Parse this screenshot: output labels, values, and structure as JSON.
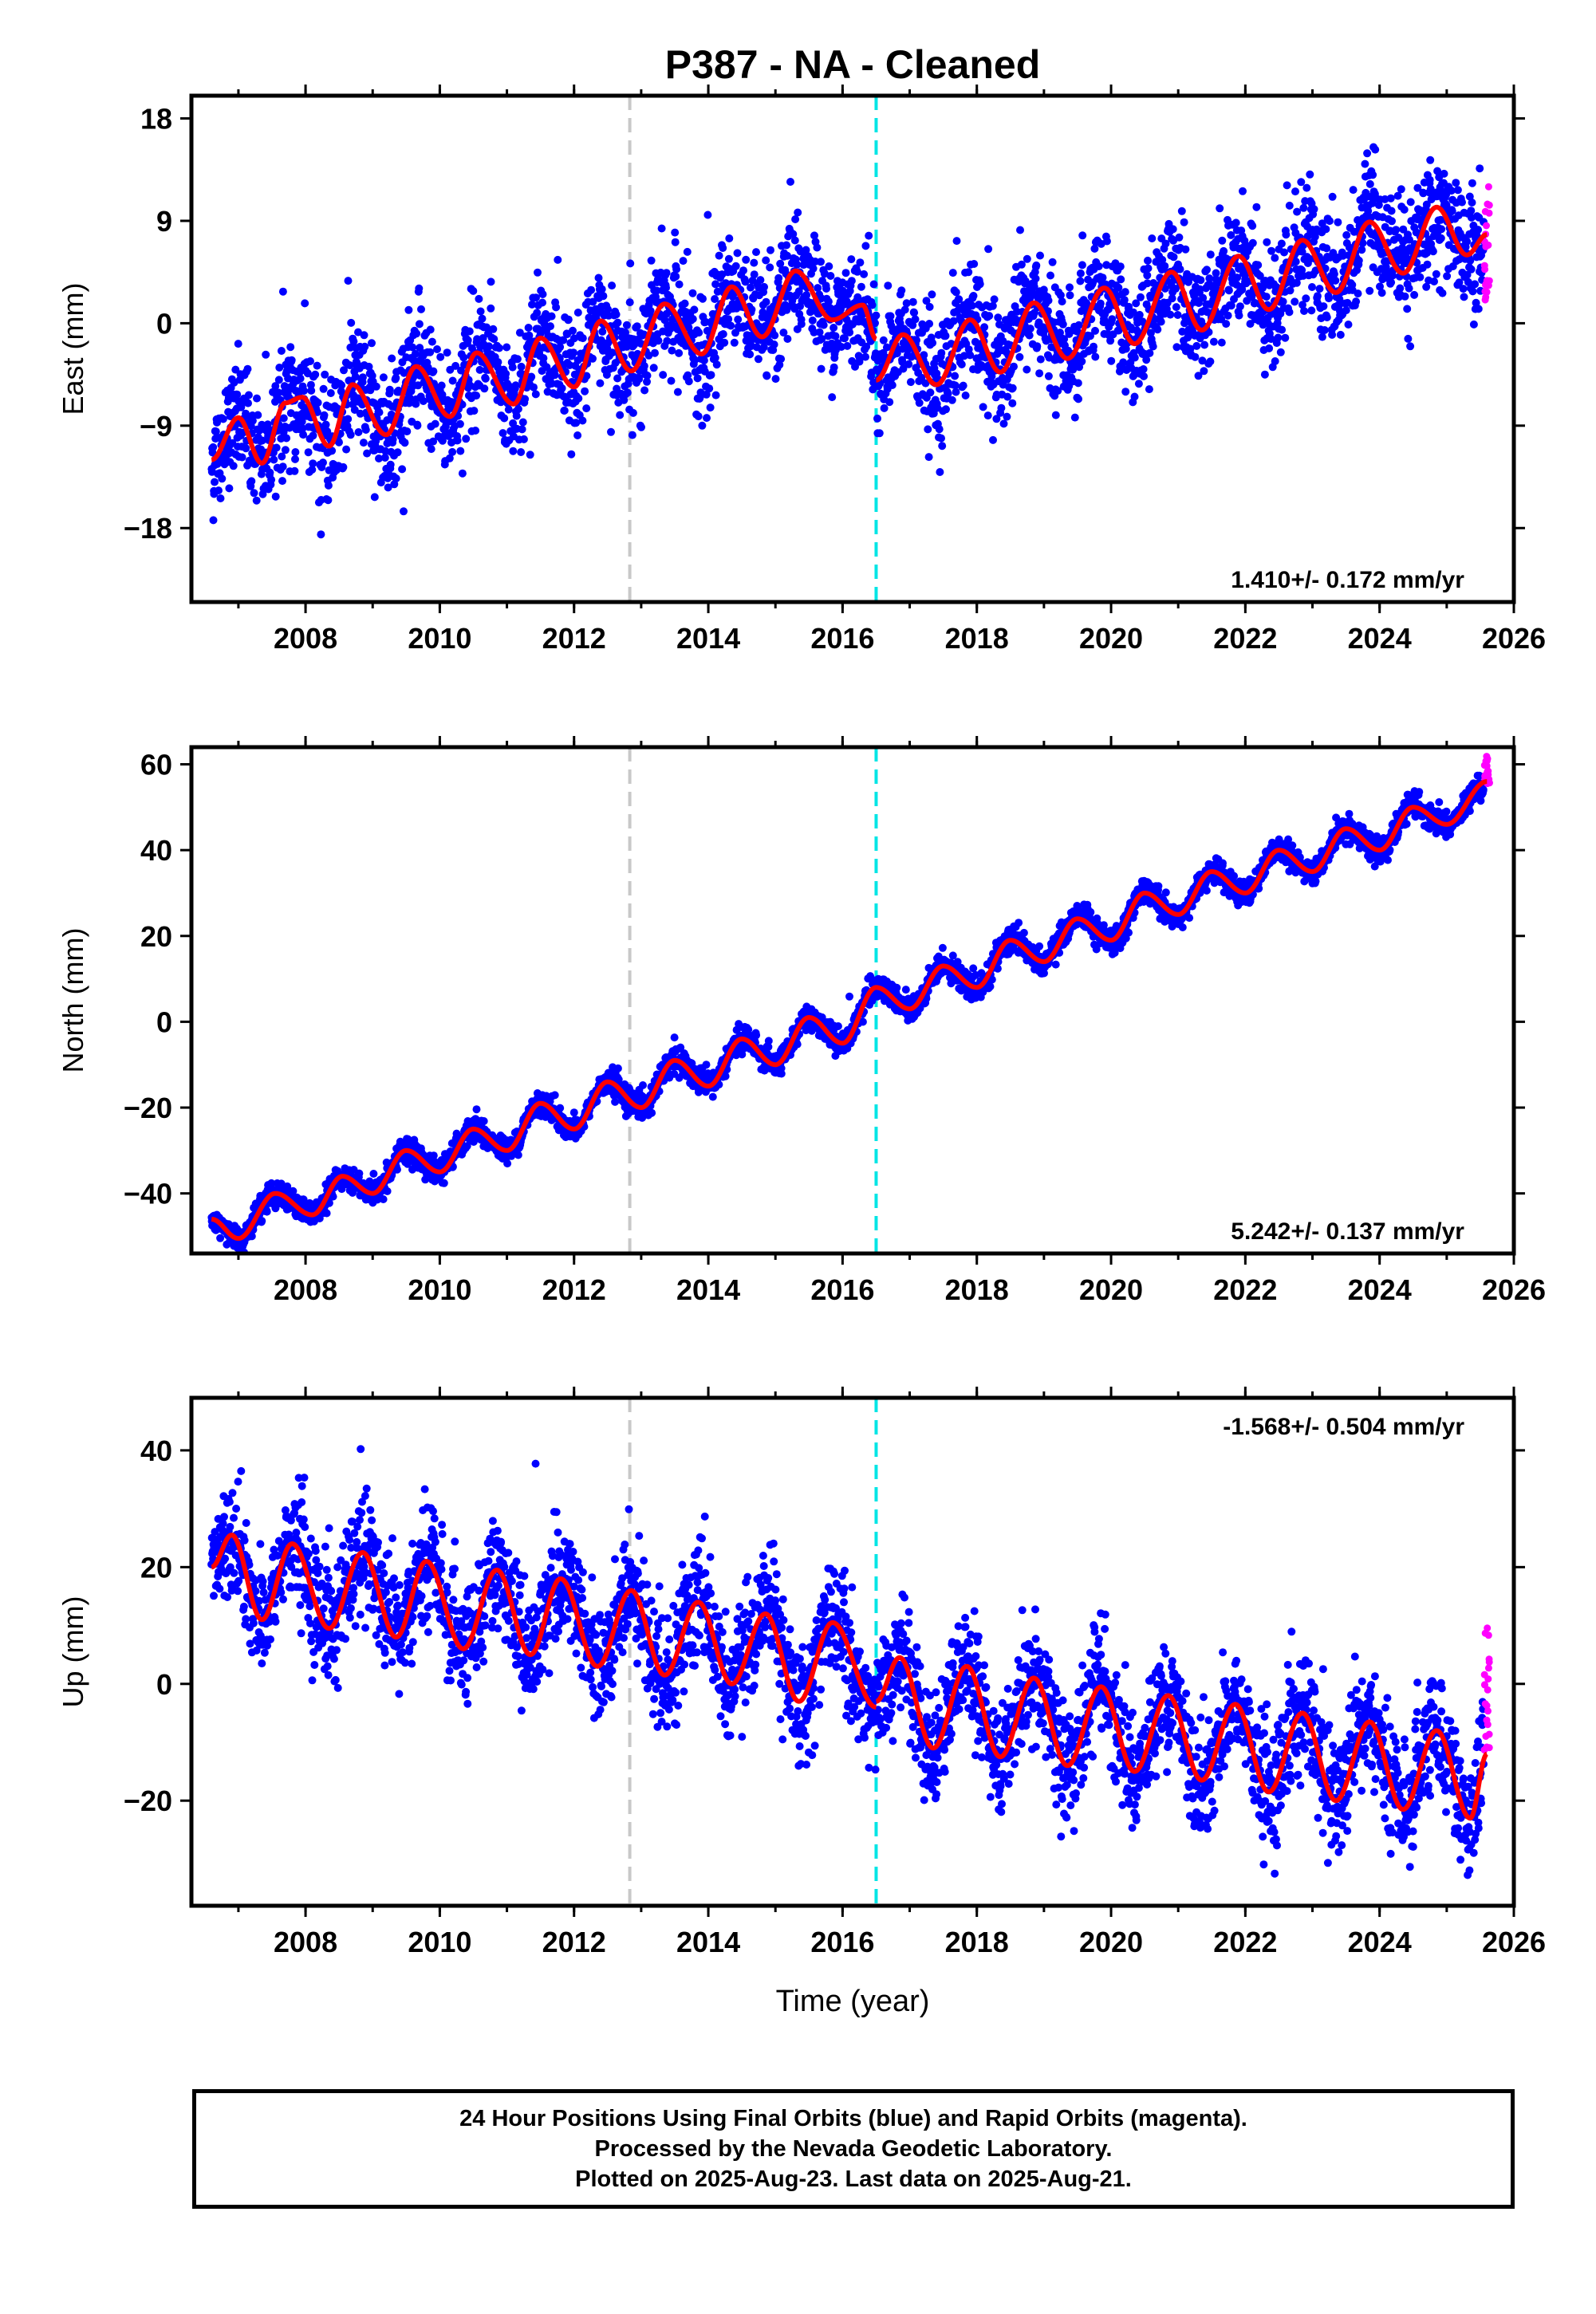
{
  "title": "P387  - NA - Cleaned",
  "xlabel": "Time (year)",
  "footer": {
    "line1": "24 Hour Positions Using Final Orbits (blue) and Rapid Orbits (magenta).",
    "line2": "Processed by the Nevada Geodetic Laboratory.",
    "line3": "Plotted on 2025-Aug-23. Last data on 2025-Aug-21."
  },
  "colors": {
    "final_orbits": "#0000ff",
    "rapid_orbits": "#ff00ff",
    "model_fit": "#ff0000",
    "event_line_1": "#c8c8c8",
    "event_line_2": "#00e5e5"
  },
  "chart_data": [
    {
      "type": "scatter",
      "component": "east",
      "ylabel": "East (mm)",
      "rate_text": "1.410+/- 0.172 mm/yr",
      "xlim": [
        2006.3,
        2026.0
      ],
      "ylim": [
        -24.5,
        20.0
      ],
      "x_ticks": [
        2008,
        2010,
        2012,
        2014,
        2016,
        2018,
        2020,
        2022,
        2024,
        2026
      ],
      "y_ticks": [
        -18,
        -9,
        0,
        9,
        18
      ],
      "y_tick_labels": [
        "−18",
        "−9",
        "0",
        "9",
        "18"
      ],
      "event_lines": [
        2012.83,
        2016.5
      ],
      "model_segments": [
        {
          "x": [
            2006.6,
            2007.0,
            2007.35,
            2007.7,
            2007.95,
            2008.35,
            2008.7,
            2009.2,
            2009.65,
            2010.15,
            2010.55,
            2011.1,
            2011.5,
            2012.0,
            2012.4,
            2012.85,
            2013.35,
            2013.9,
            2014.35,
            2014.8,
            2015.3,
            2015.85,
            2016.3,
            2016.5
          ],
          "y": [
            -12.0,
            -8.3,
            -12.3,
            -7.0,
            -6.5,
            -10.8,
            -5.4,
            -9.8,
            -3.8,
            -8.2,
            -2.6,
            -7.1,
            -1.3,
            -5.6,
            0.2,
            -4.2,
            1.7,
            -2.7,
            3.2,
            -1.2,
            4.6,
            0.3,
            1.6,
            -1.4
          ]
        },
        {
          "x": [
            2016.5,
            2016.9,
            2017.4,
            2017.9,
            2018.35,
            2018.85,
            2019.35,
            2019.9,
            2020.35,
            2020.9,
            2021.35,
            2021.9,
            2022.35,
            2022.85,
            2023.35,
            2023.85,
            2024.35,
            2024.85,
            2025.3,
            2025.6
          ],
          "y": [
            -5.0,
            -1.0,
            -5.4,
            0.3,
            -4.3,
            1.8,
            -3.1,
            3.1,
            -1.8,
            4.5,
            -0.6,
            5.9,
            1.2,
            7.3,
            2.7,
            8.9,
            4.4,
            10.2,
            6.0,
            7.8
          ]
        }
      ],
      "scatter_sd": 2.6,
      "rapid_orbit_points": {
        "x_range": [
          2025.56,
          2025.64
        ],
        "y_range": [
          1.0,
          12.0
        ]
      }
    },
    {
      "type": "scatter",
      "component": "north",
      "ylabel": "North (mm)",
      "rate_text": "5.242+/- 0.137 mm/yr",
      "xlim": [
        2006.3,
        2026.0
      ],
      "ylim": [
        -54.0,
        64.0
      ],
      "x_ticks": [
        2008,
        2010,
        2012,
        2014,
        2016,
        2018,
        2020,
        2022,
        2024,
        2026
      ],
      "y_ticks": [
        -40,
        -20,
        0,
        20,
        40,
        60
      ],
      "y_tick_labels": [
        "−40",
        "−20",
        "0",
        "20",
        "40",
        "60"
      ],
      "event_lines": [
        2012.83,
        2016.5
      ],
      "model_segments": [
        {
          "x": [
            2006.6,
            2007.0,
            2007.55,
            2008.1,
            2008.55,
            2009.0,
            2009.5,
            2010.0,
            2010.5,
            2011.0,
            2011.5,
            2012.0,
            2012.5,
            2013.0,
            2013.5,
            2014.0,
            2014.5,
            2015.0,
            2015.5,
            2016.0,
            2016.5,
            2017.0,
            2017.5,
            2018.0,
            2018.5,
            2019.0,
            2019.5,
            2020.0,
            2020.5,
            2021.0,
            2021.5,
            2022.0,
            2022.5,
            2023.0,
            2023.5,
            2024.0,
            2024.5,
            2025.0,
            2025.6
          ],
          "y": [
            -46.0,
            -50.5,
            -40.0,
            -45.0,
            -36.0,
            -40.0,
            -30.0,
            -35.0,
            -25.0,
            -30.0,
            -19.0,
            -25.0,
            -14.0,
            -20.0,
            -9.0,
            -15.0,
            -4.0,
            -10.0,
            1.0,
            -5.0,
            8.0,
            3.0,
            13.0,
            8.0,
            19.0,
            14.0,
            24.0,
            19.0,
            30.0,
            25.0,
            35.0,
            30.0,
            40.0,
            35.0,
            45.0,
            40.0,
            50.0,
            46.0,
            56.0
          ]
        }
      ],
      "scatter_sd": 1.5,
      "rapid_orbit_points": {
        "x_range": [
          2025.56,
          2025.64
        ],
        "y_range": [
          55.0,
          62.0
        ]
      }
    },
    {
      "type": "scatter",
      "component": "up",
      "ylabel": "Up (mm)",
      "rate_text": "-1.568+/- 0.504 mm/yr",
      "xlim": [
        2006.3,
        2026.0
      ],
      "ylim": [
        -38.0,
        49.0
      ],
      "x_ticks": [
        2008,
        2010,
        2012,
        2014,
        2016,
        2018,
        2020,
        2022,
        2024,
        2026
      ],
      "y_ticks": [
        -20,
        0,
        20,
        40
      ],
      "y_tick_labels": [
        "−20",
        "0",
        "20",
        "40"
      ],
      "event_lines": [
        2012.83,
        2016.5
      ],
      "model_segments": [
        {
          "x": [
            2006.6,
            2006.9,
            2007.35,
            2007.8,
            2008.35,
            2008.85,
            2009.35,
            2009.8,
            2010.35,
            2010.85,
            2011.35,
            2011.8,
            2012.35,
            2012.85,
            2013.35,
            2013.85,
            2014.35,
            2014.85,
            2015.35,
            2015.85,
            2016.5
          ],
          "y": [
            20.0,
            25.5,
            11.0,
            24.0,
            9.5,
            22.5,
            8.0,
            21.0,
            6.0,
            19.5,
            5.0,
            18.0,
            3.0,
            16.0,
            1.5,
            14.0,
            0.0,
            12.0,
            -3.0,
            10.5,
            -4.0
          ]
        },
        {
          "x": [
            2016.5,
            2016.85,
            2017.35,
            2017.85,
            2018.35,
            2018.85,
            2019.35,
            2019.85,
            2020.35,
            2020.85,
            2021.35,
            2021.85,
            2022.35,
            2022.85,
            2023.35,
            2023.85,
            2024.35,
            2024.85,
            2025.35,
            2025.6
          ],
          "y": [
            -3.0,
            4.5,
            -11.0,
            3.0,
            -12.5,
            1.0,
            -14.0,
            -0.5,
            -15.0,
            -2.0,
            -16.5,
            -3.5,
            -18.5,
            -5.0,
            -20.0,
            -6.5,
            -21.5,
            -8.0,
            -23.0,
            -12.0
          ]
        }
      ],
      "scatter_sd": 5.0,
      "rapid_orbit_points": {
        "x_range": [
          2025.56,
          2025.64
        ],
        "y_range": [
          -12.0,
          13.0
        ]
      }
    }
  ]
}
